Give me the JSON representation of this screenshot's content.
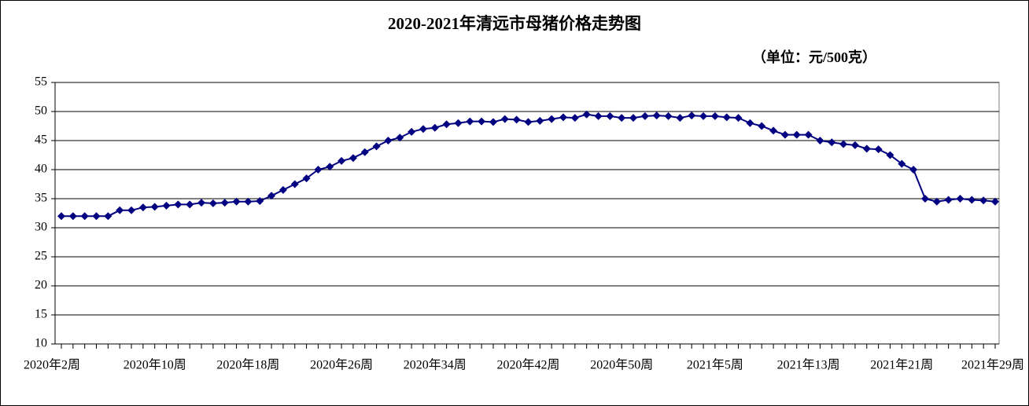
{
  "chart_data": {
    "type": "line",
    "title": "2020-2021年清远市母猪价格走势图",
    "subtitle": "（单位：元/500克）",
    "categories": [
      "2020年2周",
      null,
      null,
      null,
      null,
      null,
      null,
      null,
      "2020年10周",
      null,
      null,
      null,
      null,
      null,
      null,
      null,
      "2020年18周",
      null,
      null,
      null,
      null,
      null,
      null,
      null,
      "2020年26周",
      null,
      null,
      null,
      null,
      null,
      null,
      null,
      "2020年34周",
      null,
      null,
      null,
      null,
      null,
      null,
      null,
      "2020年42周",
      null,
      null,
      null,
      null,
      null,
      null,
      null,
      "2020年50周",
      null,
      null,
      null,
      null,
      null,
      null,
      null,
      "2021年5周",
      null,
      null,
      null,
      null,
      null,
      null,
      null,
      "2021年13周",
      null,
      null,
      null,
      null,
      null,
      null,
      null,
      "2021年21周",
      null,
      null,
      null,
      null,
      null,
      null,
      null,
      "2021年29周"
    ],
    "series": [
      {
        "color": "#000080",
        "values": [
          32,
          32,
          32,
          32,
          32,
          33,
          33,
          33.5,
          33.6,
          33.8,
          34,
          34,
          34.3,
          34.2,
          34.3,
          34.5,
          34.5,
          34.6,
          35.5,
          36.5,
          37.5,
          38.5,
          40,
          40.5,
          41.5,
          42,
          43,
          44,
          45,
          45.5,
          46.5,
          47,
          47.2,
          47.8,
          48,
          48.3,
          48.3,
          48.2,
          48.7,
          48.6,
          48.2,
          48.4,
          48.7,
          49,
          48.9,
          49.5,
          49.2,
          49.2,
          48.9,
          48.9,
          49.2,
          49.3,
          49.2,
          48.9,
          49.3,
          49.2,
          49.2,
          49,
          48.9,
          48,
          47.5,
          46.7,
          46,
          46,
          46,
          45,
          44.7,
          44.4,
          44.2,
          43.6,
          43.5,
          42.5,
          41,
          40,
          35,
          34.5,
          34.8,
          35,
          34.8,
          34.7,
          34.5
        ]
      }
    ],
    "ylim": [
      10,
      55
    ],
    "yticks": [
      10,
      15,
      20,
      25,
      30,
      35,
      40,
      45,
      50,
      55
    ],
    "grid": true
  }
}
